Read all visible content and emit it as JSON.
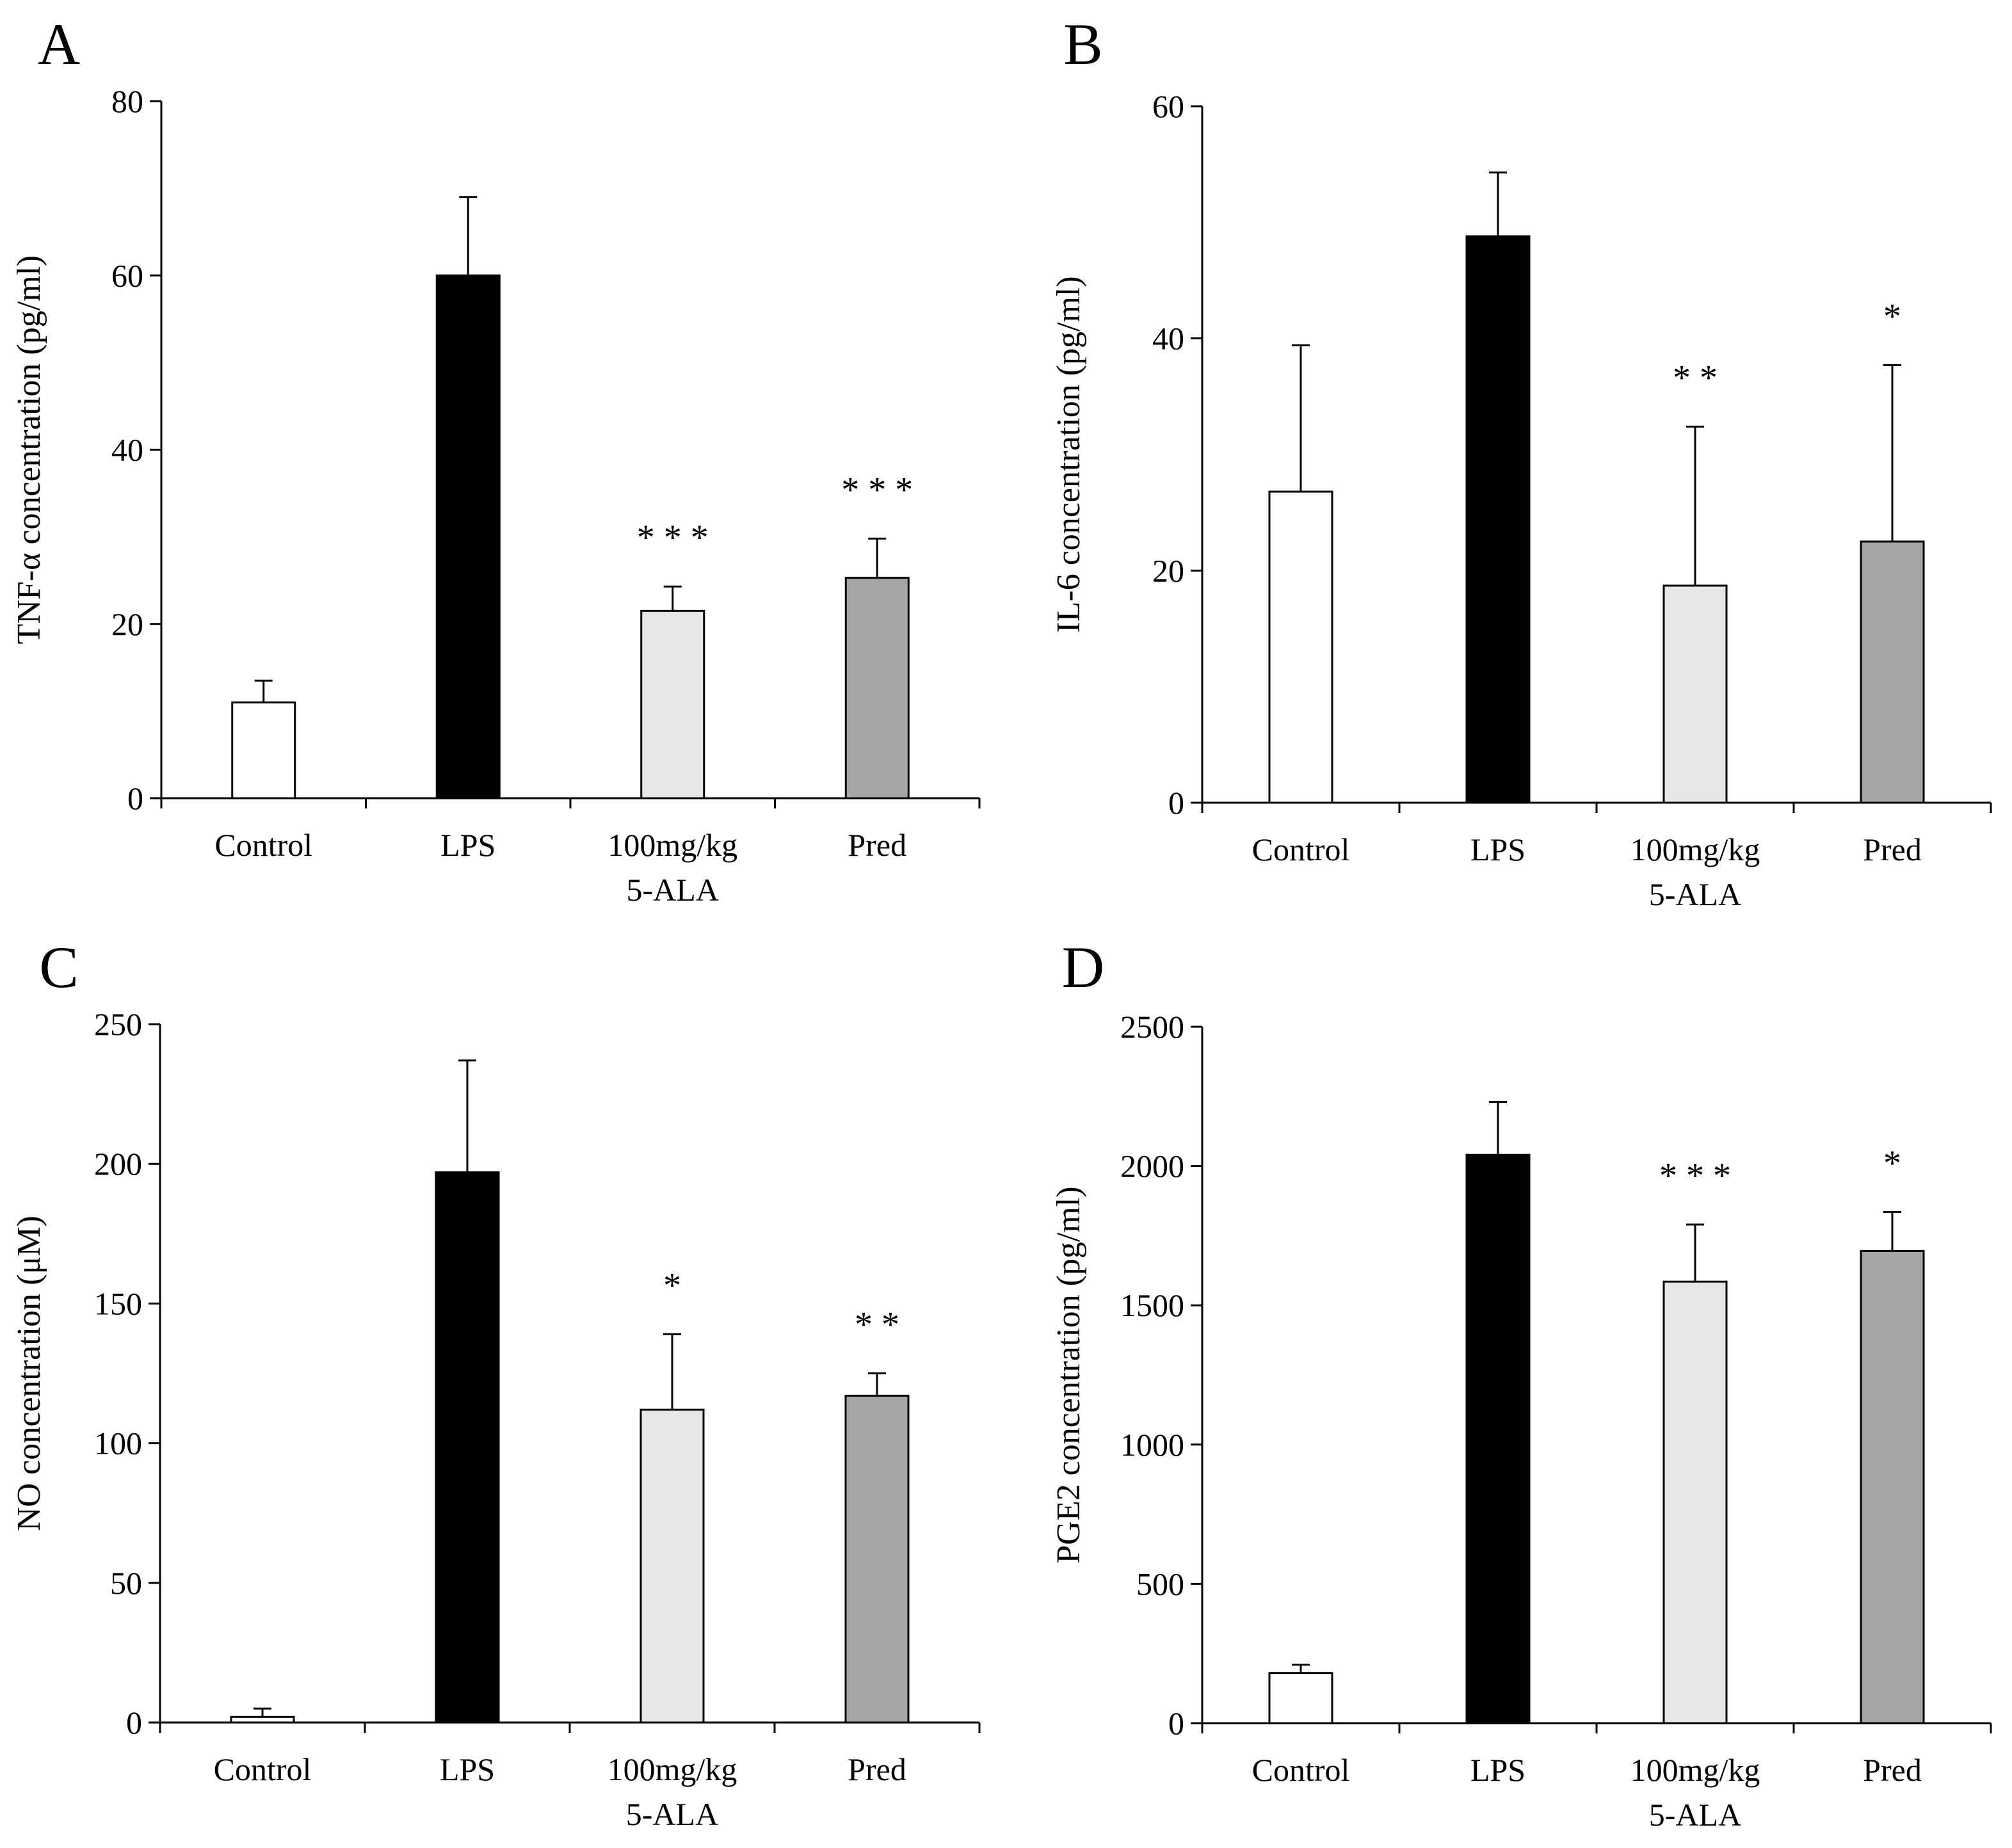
{
  "figure": {
    "panels": [
      "A",
      "B",
      "C",
      "D"
    ]
  },
  "chart_data": [
    {
      "panel": "A",
      "type": "bar",
      "ylabel": "TNF-α concentration (pg/ml)",
      "ylim": [
        0,
        80
      ],
      "yticks": [
        0,
        20,
        40,
        60,
        80
      ],
      "categories": [
        {
          "lines": [
            "Control"
          ]
        },
        {
          "lines": [
            "LPS"
          ]
        },
        {
          "lines": [
            "100mg/kg",
            "5-ALA"
          ]
        },
        {
          "lines": [
            "Pred"
          ]
        }
      ],
      "values": [
        11,
        60,
        21.5,
        25.3
      ],
      "errors": [
        2.5,
        9,
        2.8,
        4.5
      ],
      "significance": [
        "",
        "",
        "* * *",
        "* * *"
      ],
      "colors": [
        "#ffffff",
        "#000000",
        "#e6e6e6",
        "#a6a6a6"
      ]
    },
    {
      "panel": "B",
      "type": "bar",
      "ylabel": "IL-6 concentration (pg/ml)",
      "ylim": [
        0,
        60
      ],
      "yticks": [
        0,
        20,
        40,
        60
      ],
      "categories": [
        {
          "lines": [
            "Control"
          ]
        },
        {
          "lines": [
            "LPS"
          ]
        },
        {
          "lines": [
            "100mg/kg",
            "5-ALA"
          ]
        },
        {
          "lines": [
            "Pred"
          ]
        }
      ],
      "values": [
        26.8,
        48.8,
        18.7,
        22.5
      ],
      "errors": [
        12.6,
        5.5,
        13.7,
        15.2
      ],
      "significance": [
        "",
        "",
        "* *",
        "*"
      ],
      "colors": [
        "#ffffff",
        "#000000",
        "#e6e6e6",
        "#a6a6a6"
      ]
    },
    {
      "panel": "C",
      "type": "bar",
      "ylabel": "NO concentration (μM)",
      "ylim": [
        0,
        250
      ],
      "yticks": [
        0,
        50,
        100,
        150,
        200,
        250
      ],
      "categories": [
        {
          "lines": [
            "Control"
          ]
        },
        {
          "lines": [
            "LPS"
          ]
        },
        {
          "lines": [
            "100mg/kg",
            "5-ALA"
          ]
        },
        {
          "lines": [
            "Pred"
          ]
        }
      ],
      "values": [
        2,
        197,
        112,
        117
      ],
      "errors": [
        3,
        40,
        27,
        8
      ],
      "significance": [
        "",
        "",
        "*",
        "* *"
      ],
      "colors": [
        "#ffffff",
        "#000000",
        "#e6e6e6",
        "#a6a6a6"
      ]
    },
    {
      "panel": "D",
      "type": "bar",
      "ylabel": "PGE2 concentration (pg/ml)",
      "ylim": [
        0,
        2500
      ],
      "yticks": [
        0,
        500,
        1000,
        1500,
        2000,
        2500
      ],
      "categories": [
        {
          "lines": [
            "Control"
          ]
        },
        {
          "lines": [
            "LPS"
          ]
        },
        {
          "lines": [
            "100mg/kg",
            "5-ALA"
          ]
        },
        {
          "lines": [
            "Pred"
          ]
        }
      ],
      "values": [
        180,
        2040,
        1585,
        1695
      ],
      "errors": [
        30,
        190,
        205,
        140
      ],
      "significance": [
        "",
        "",
        "* * *",
        "*"
      ],
      "colors": [
        "#ffffff",
        "#000000",
        "#e6e6e6",
        "#a6a6a6"
      ]
    }
  ]
}
